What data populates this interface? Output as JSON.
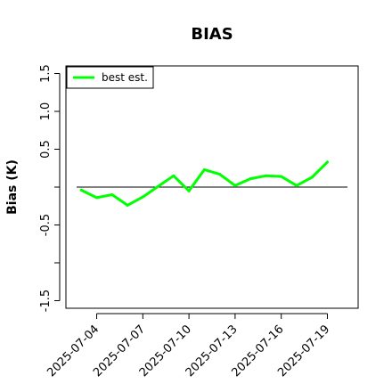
{
  "chart_data": {
    "type": "line",
    "title": "BIAS",
    "xlabel": "",
    "ylabel": "Bias (K)",
    "ylim": [
      -1.6,
      1.6
    ],
    "yticks": [
      -1.5,
      -1.0,
      -0.5,
      0.0,
      0.5,
      1.0,
      1.5
    ],
    "ytick_labels": [
      "-1.5",
      "",
      "-0.5",
      "",
      "0.5",
      "1.0",
      "1.5"
    ],
    "xlim": [
      "2025-07-02",
      "2025-07-21"
    ],
    "xticks": [
      "2025-07-04",
      "2025-07-07",
      "2025-07-10",
      "2025-07-13",
      "2025-07-16",
      "2025-07-19"
    ],
    "grid": false,
    "legend": {
      "location": "top-left",
      "entries": [
        {
          "name": "best est.",
          "color": "#00ff00"
        }
      ]
    },
    "reference_line": {
      "y": 0.0,
      "color": "#000000"
    },
    "series": [
      {
        "name": "best est.",
        "color": "#00ff00",
        "x": [
          "2025-07-03",
          "2025-07-04",
          "2025-07-05",
          "2025-07-06",
          "2025-07-07",
          "2025-07-08",
          "2025-07-09",
          "2025-07-10",
          "2025-07-11",
          "2025-07-12",
          "2025-07-13",
          "2025-07-14",
          "2025-07-15",
          "2025-07-16",
          "2025-07-17",
          "2025-07-18",
          "2025-07-19"
        ],
        "values": [
          -0.04,
          -0.14,
          -0.1,
          -0.24,
          -0.13,
          0.01,
          0.15,
          -0.05,
          0.23,
          0.17,
          0.02,
          0.11,
          0.15,
          0.14,
          0.02,
          0.13,
          0.33
        ]
      }
    ]
  }
}
